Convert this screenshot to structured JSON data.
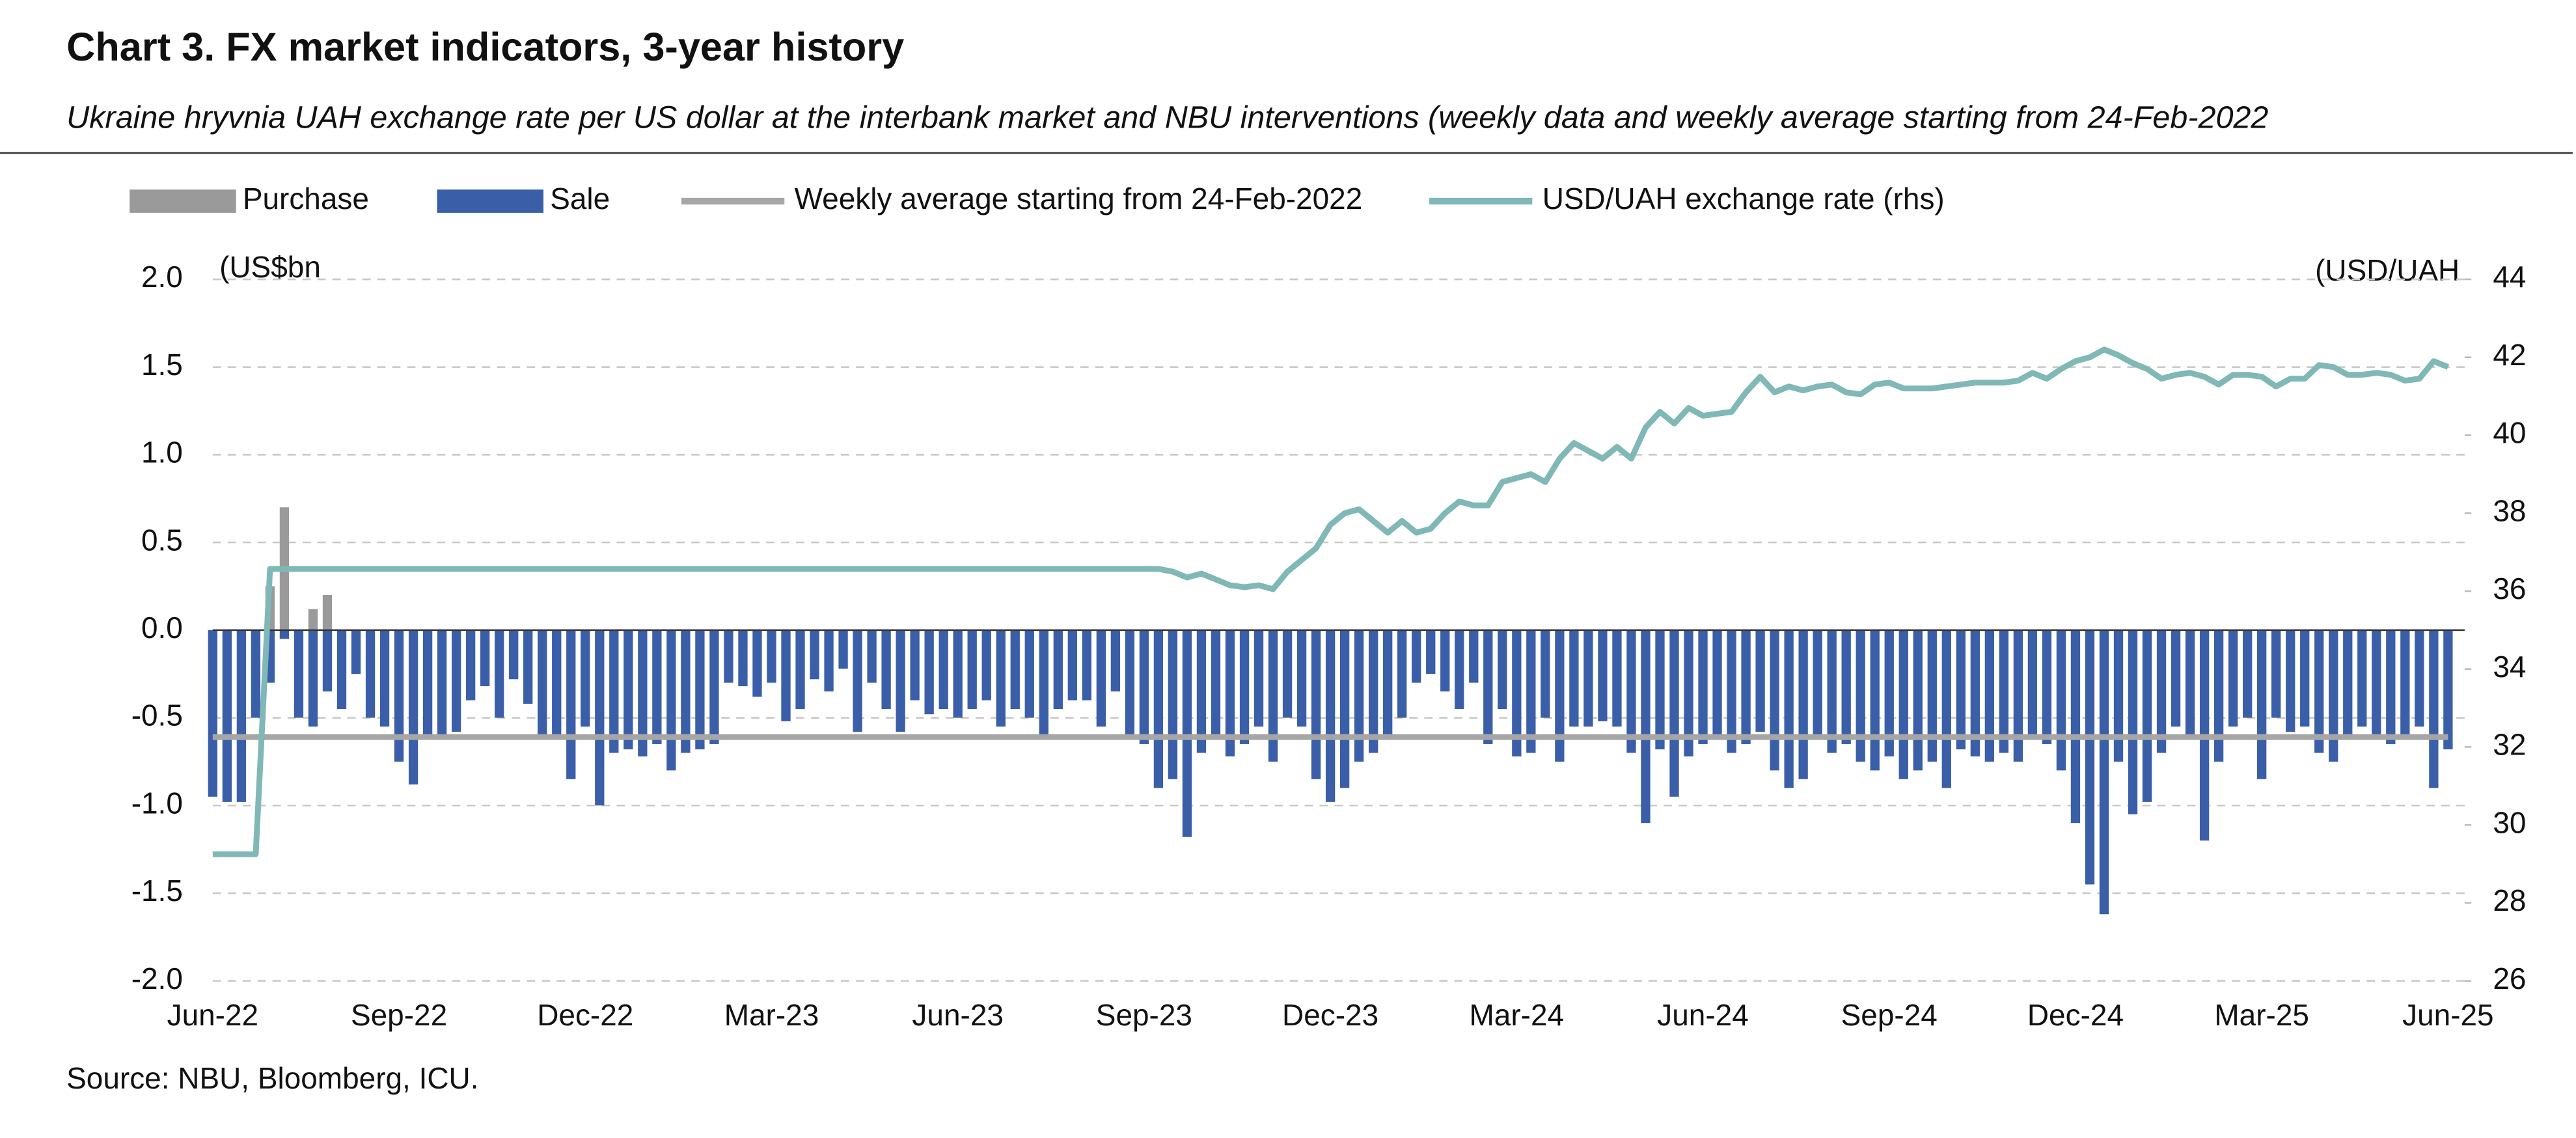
{
  "chart_data": {
    "type": "combo",
    "title": "Chart 3. FX market indicators, 3-year history",
    "subtitle": "Ukraine hryvnia UAH exchange rate per US dollar at the interbank market and NBU interventions (weekly data and weekly average starting from 24-Feb-2022",
    "y_axis_label": "(US$bn",
    "y2_axis_label": "(USD/UAH",
    "source": "Source: NBU, Bloomberg, ICU.",
    "legend": "top",
    "grid": true,
    "ylim": [
      -2,
      2
    ],
    "yticks": [
      {
        "value": -2,
        "label": "-2.0"
      },
      -1.5,
      {
        "value": -1,
        "label": "-1.0"
      },
      -0.5,
      {
        "value": 0,
        "label": "0.0"
      },
      0.5,
      {
        "value": 1,
        "label": "1.0"
      },
      1.5,
      {
        "value": 2,
        "label": "2.0"
      }
    ],
    "y2lim": [
      26,
      44
    ],
    "y2ticks": [
      26,
      28,
      30,
      32,
      34,
      36,
      38,
      40,
      42,
      44
    ],
    "categories": [
      "Jun-22",
      null,
      null,
      null,
      null,
      null,
      null,
      null,
      null,
      null,
      null,
      null,
      null,
      "Sep-22",
      null,
      null,
      null,
      null,
      null,
      null,
      null,
      null,
      null,
      null,
      null,
      null,
      "Dec-22",
      null,
      null,
      null,
      null,
      null,
      null,
      null,
      null,
      null,
      null,
      null,
      null,
      "Mar-23",
      null,
      null,
      null,
      null,
      null,
      null,
      null,
      null,
      null,
      null,
      null,
      null,
      "Jun-23",
      null,
      null,
      null,
      null,
      null,
      null,
      null,
      null,
      null,
      null,
      null,
      null,
      "Sep-23",
      null,
      null,
      null,
      null,
      null,
      null,
      null,
      null,
      null,
      null,
      null,
      null,
      "Dec-23",
      null,
      null,
      null,
      null,
      null,
      null,
      null,
      null,
      null,
      null,
      null,
      null,
      "Mar-24",
      null,
      null,
      null,
      null,
      null,
      null,
      null,
      null,
      null,
      null,
      null,
      null,
      "Jun-24",
      null,
      null,
      null,
      null,
      null,
      null,
      null,
      null,
      null,
      null,
      null,
      null,
      "Sep-24",
      null,
      null,
      null,
      null,
      null,
      null,
      null,
      null,
      null,
      null,
      null,
      null,
      "Dec-24",
      null,
      null,
      null,
      null,
      null,
      null,
      null,
      null,
      null,
      null,
      null,
      null,
      "Mar-25",
      null,
      null,
      null,
      null,
      null,
      null,
      null,
      null,
      null,
      null,
      null,
      null,
      "Jun-25"
    ],
    "series": [
      {
        "name": "Purchase",
        "type": "bar",
        "color": "#9a9a9a",
        "values": [
          0,
          0,
          0,
          0,
          0.25,
          0.7,
          0,
          0.12,
          0.2,
          0,
          0,
          0,
          0,
          0,
          0,
          0,
          0,
          0,
          0,
          0,
          0,
          0,
          0,
          0,
          0,
          0,
          0,
          0,
          0,
          0,
          0,
          0,
          0,
          0,
          0,
          0,
          0,
          0,
          0,
          0,
          0,
          0,
          0,
          0,
          0,
          0,
          0,
          0,
          0,
          0,
          0,
          0,
          0,
          0,
          0,
          0,
          0,
          0,
          0,
          0,
          0,
          0,
          0,
          0,
          0,
          0,
          0,
          0,
          0,
          0,
          0,
          0,
          0,
          0,
          0,
          0,
          0,
          0,
          0,
          0,
          0,
          0,
          0,
          0,
          0,
          0,
          0,
          0,
          0,
          0,
          0,
          0,
          0,
          0,
          0,
          0,
          0,
          0,
          0,
          0,
          0,
          0,
          0,
          0,
          0,
          0,
          0,
          0,
          0,
          0,
          0,
          0,
          0,
          0,
          0,
          0,
          0,
          0,
          0,
          0,
          0,
          0,
          0,
          0,
          0,
          0,
          0,
          0,
          0,
          0,
          0,
          0,
          0,
          0,
          0,
          0,
          0,
          0,
          0,
          0,
          0,
          0,
          0,
          0,
          0,
          0,
          0,
          0,
          0,
          0,
          0,
          0,
          0,
          0,
          0,
          0,
          0
        ]
      },
      {
        "name": "Sale",
        "type": "bar",
        "color": "#3a5fa8",
        "values": [
          -0.95,
          -0.98,
          -0.98,
          -0.5,
          -0.3,
          -0.05,
          -0.5,
          -0.55,
          -0.35,
          -0.45,
          -0.25,
          -0.5,
          -0.55,
          -0.75,
          -0.88,
          -0.6,
          -0.62,
          -0.58,
          -0.4,
          -0.32,
          -0.5,
          -0.28,
          -0.42,
          -0.6,
          -0.6,
          -0.85,
          -0.55,
          -1.0,
          -0.7,
          -0.68,
          -0.72,
          -0.65,
          -0.8,
          -0.7,
          -0.68,
          -0.65,
          -0.3,
          -0.32,
          -0.38,
          -0.3,
          -0.52,
          -0.45,
          -0.28,
          -0.35,
          -0.22,
          -0.58,
          -0.3,
          -0.45,
          -0.58,
          -0.4,
          -0.48,
          -0.45,
          -0.5,
          -0.45,
          -0.4,
          -0.55,
          -0.45,
          -0.5,
          -0.6,
          -0.45,
          -0.4,
          -0.4,
          -0.55,
          -0.35,
          -0.6,
          -0.65,
          -0.9,
          -0.85,
          -1.18,
          -0.7,
          -0.6,
          -0.72,
          -0.65,
          -0.55,
          -0.75,
          -0.5,
          -0.55,
          -0.85,
          -0.98,
          -0.9,
          -0.75,
          -0.7,
          -0.6,
          -0.5,
          -0.3,
          -0.25,
          -0.35,
          -0.45,
          -0.3,
          -0.65,
          -0.45,
          -0.72,
          -0.7,
          -0.5,
          -0.75,
          -0.55,
          -0.55,
          -0.52,
          -0.55,
          -0.7,
          -1.1,
          -0.68,
          -0.95,
          -0.72,
          -0.65,
          -0.6,
          -0.7,
          -0.65,
          -0.58,
          -0.8,
          -0.9,
          -0.85,
          -0.6,
          -0.7,
          -0.65,
          -0.75,
          -0.8,
          -0.72,
          -0.85,
          -0.8,
          -0.75,
          -0.9,
          -0.68,
          -0.72,
          -0.75,
          -0.7,
          -0.75,
          -0.6,
          -0.65,
          -0.8,
          -1.1,
          -1.45,
          -1.62,
          -0.75,
          -1.05,
          -0.98,
          -0.7,
          -0.55,
          -0.6,
          -1.2,
          -0.75,
          -0.55,
          -0.5,
          -0.85,
          -0.5,
          -0.58,
          -0.55,
          -0.7,
          -0.75,
          -0.6,
          -0.55,
          -0.6,
          -0.65,
          -0.6,
          -0.55,
          -0.9,
          -0.68
        ]
      },
      {
        "name": "Weekly average starting from 24-Feb-2022",
        "type": "line",
        "color": "#a6a6a6",
        "values": [
          -0.61,
          -0.61,
          -0.61,
          -0.61,
          -0.61,
          -0.61,
          -0.61,
          -0.61,
          -0.61,
          -0.61,
          -0.61,
          -0.61,
          -0.61,
          -0.61,
          -0.61,
          -0.61,
          -0.61,
          -0.61,
          -0.61,
          -0.61,
          -0.61,
          -0.61,
          -0.61,
          -0.61,
          -0.61,
          -0.61,
          -0.61,
          -0.61,
          -0.61,
          -0.61,
          -0.61,
          -0.61,
          -0.61,
          -0.61,
          -0.61,
          -0.61,
          -0.61,
          -0.61,
          -0.61,
          -0.61,
          -0.61,
          -0.61,
          -0.61,
          -0.61,
          -0.61,
          -0.61,
          -0.61,
          -0.61,
          -0.61,
          -0.61,
          -0.61,
          -0.61,
          -0.61,
          -0.61,
          -0.61,
          -0.61,
          -0.61,
          -0.61,
          -0.61,
          -0.61,
          -0.61,
          -0.61,
          -0.61,
          -0.61,
          -0.61,
          -0.61,
          -0.61,
          -0.61,
          -0.61,
          -0.61,
          -0.61,
          -0.61,
          -0.61,
          -0.61,
          -0.61,
          -0.61,
          -0.61,
          -0.61,
          -0.61,
          -0.61,
          -0.61,
          -0.61,
          -0.61,
          -0.61,
          -0.61,
          -0.61,
          -0.61,
          -0.61,
          -0.61,
          -0.61,
          -0.61,
          -0.61,
          -0.61,
          -0.61,
          -0.61,
          -0.61,
          -0.61,
          -0.61,
          -0.61,
          -0.61,
          -0.61,
          -0.61,
          -0.61,
          -0.61,
          -0.61,
          -0.61,
          -0.61,
          -0.61,
          -0.61,
          -0.61,
          -0.61,
          -0.61,
          -0.61,
          -0.61,
          -0.61,
          -0.61,
          -0.61,
          -0.61,
          -0.61,
          -0.61,
          -0.61,
          -0.61,
          -0.61,
          -0.61,
          -0.61,
          -0.61,
          -0.61,
          -0.61,
          -0.61,
          -0.61,
          -0.61,
          -0.61,
          -0.61,
          -0.61,
          -0.61,
          -0.61,
          -0.61,
          -0.61,
          -0.61,
          -0.61,
          -0.61,
          -0.61,
          -0.61,
          -0.61,
          -0.61,
          -0.61,
          -0.61,
          -0.61,
          -0.61,
          -0.61,
          -0.61,
          -0.61,
          -0.61,
          -0.61,
          -0.61,
          -0.61,
          -0.61
        ]
      },
      {
        "name": "USD/UAH exchange rate (rhs)",
        "type": "line",
        "axis": "y2",
        "color": "#7fb8b6",
        "values": [
          29.25,
          29.25,
          29.25,
          29.25,
          36.57,
          36.57,
          36.57,
          36.57,
          36.57,
          36.57,
          36.57,
          36.57,
          36.57,
          36.57,
          36.57,
          36.57,
          36.57,
          36.57,
          36.57,
          36.57,
          36.57,
          36.57,
          36.57,
          36.57,
          36.57,
          36.57,
          36.57,
          36.57,
          36.57,
          36.57,
          36.57,
          36.57,
          36.57,
          36.57,
          36.57,
          36.57,
          36.57,
          36.57,
          36.57,
          36.57,
          36.57,
          36.57,
          36.57,
          36.57,
          36.57,
          36.57,
          36.57,
          36.57,
          36.57,
          36.57,
          36.57,
          36.57,
          36.57,
          36.57,
          36.57,
          36.57,
          36.57,
          36.57,
          36.57,
          36.57,
          36.57,
          36.57,
          36.57,
          36.57,
          36.57,
          36.57,
          36.57,
          36.5,
          36.35,
          36.45,
          36.3,
          36.15,
          36.1,
          36.15,
          36.05,
          36.5,
          36.8,
          37.1,
          37.7,
          38.0,
          38.1,
          37.8,
          37.5,
          37.8,
          37.5,
          37.6,
          38.0,
          38.3,
          38.2,
          38.2,
          38.8,
          38.9,
          39.0,
          38.8,
          39.4,
          39.8,
          39.6,
          39.4,
          39.7,
          39.4,
          40.2,
          40.6,
          40.3,
          40.7,
          40.5,
          40.55,
          40.6,
          41.1,
          41.5,
          41.1,
          41.25,
          41.15,
          41.25,
          41.3,
          41.1,
          41.05,
          41.3,
          41.35,
          41.2,
          41.2,
          41.2,
          41.25,
          41.3,
          41.35,
          41.35,
          41.35,
          41.4,
          41.6,
          41.45,
          41.7,
          41.9,
          42.0,
          42.2,
          42.05,
          41.85,
          41.7,
          41.45,
          41.55,
          41.6,
          41.5,
          41.3,
          41.55,
          41.55,
          41.5,
          41.25,
          41.45,
          41.45,
          41.8,
          41.75,
          41.55,
          41.55,
          41.6,
          41.55,
          41.4,
          41.45,
          41.9,
          41.75
        ]
      }
    ]
  }
}
